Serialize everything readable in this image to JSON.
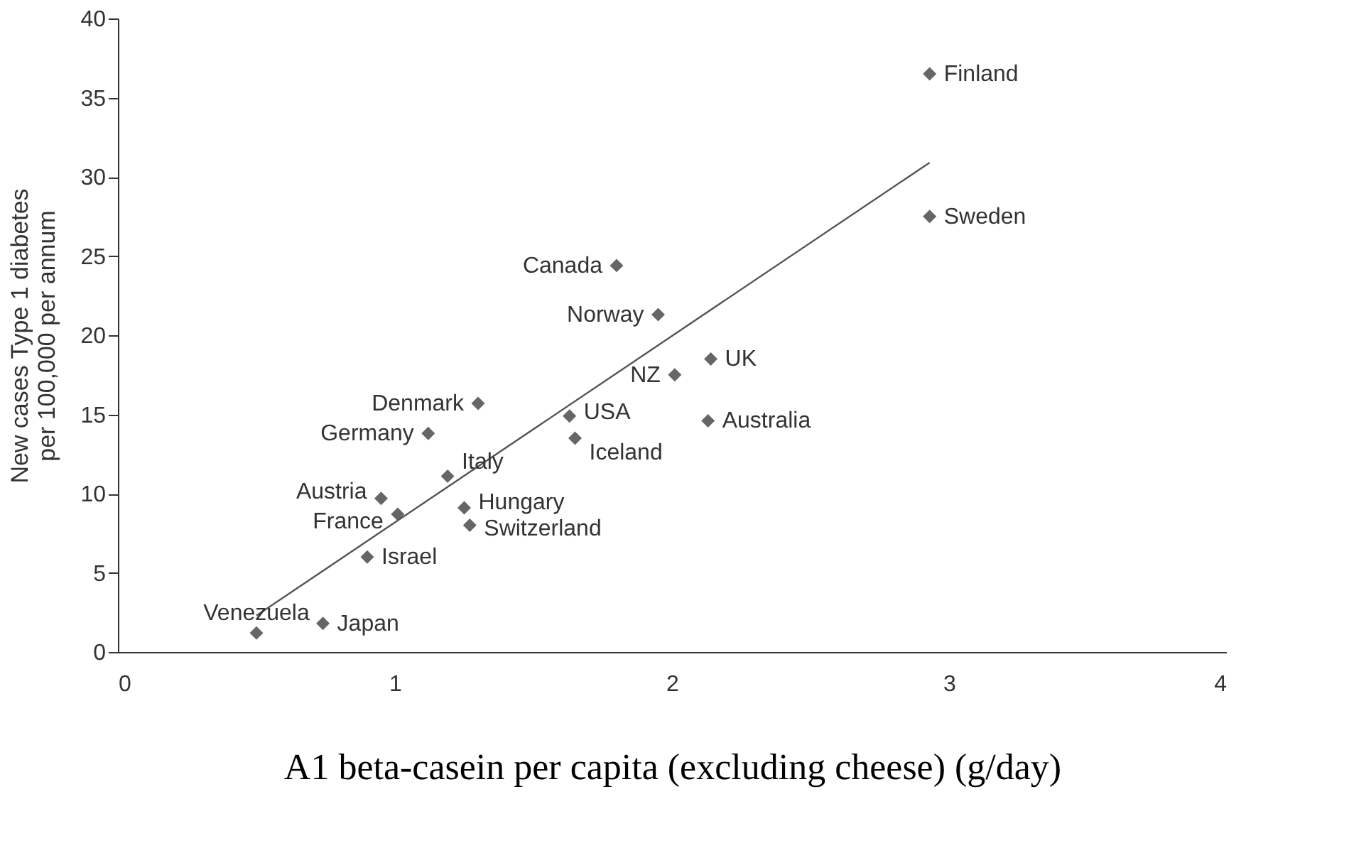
{
  "chart_data": {
    "type": "scatter",
    "xlabel": "A1 beta-casein per capita (excluding cheese) (g/day)",
    "ylabel": "New cases Type 1 diabetes\nper 100,000 per annum",
    "series": [
      {
        "color": "#666666",
        "marker": "diamond",
        "x": [
          2.93,
          2.93,
          1.8,
          1.95,
          2.14,
          2.01,
          2.13,
          1.3,
          1.63,
          1.65,
          1.12,
          1.19,
          0.95,
          1.25,
          1.01,
          1.27,
          0.9,
          0.74,
          0.5
        ],
        "values": [
          36.5,
          27.5,
          24.4,
          21.3,
          18.5,
          17.5,
          14.6,
          15.7,
          14.9,
          13.5,
          13.8,
          11.1,
          9.7,
          9.1,
          8.7,
          8.0,
          6.0,
          1.8,
          1.2
        ]
      },
      {
        "type": "line",
        "color": "#555555",
        "x": [
          0.5,
          2.93
        ],
        "values": [
          2.3,
          30.9
        ]
      }
    ],
    "annotations": [
      {
        "text": "Finland",
        "x": 2.93,
        "y": 36.5
      },
      {
        "text": "Sweden",
        "x": 2.93,
        "y": 27.5
      },
      {
        "text": "Canada",
        "x": 1.8,
        "y": 24.4
      },
      {
        "text": "Norway",
        "x": 1.95,
        "y": 21.3
      },
      {
        "text": "UK",
        "x": 2.14,
        "y": 18.5
      },
      {
        "text": "NZ",
        "x": 2.01,
        "y": 17.5
      },
      {
        "text": "Australia",
        "x": 2.13,
        "y": 14.6
      },
      {
        "text": "Denmark",
        "x": 1.3,
        "y": 15.7
      },
      {
        "text": "USA",
        "x": 1.63,
        "y": 14.9
      },
      {
        "text": "Iceland",
        "x": 1.65,
        "y": 13.5
      },
      {
        "text": "Germany",
        "x": 1.12,
        "y": 13.8
      },
      {
        "text": "Italy",
        "x": 1.19,
        "y": 11.1
      },
      {
        "text": "Austria",
        "x": 0.95,
        "y": 9.7
      },
      {
        "text": "Hungary",
        "x": 1.25,
        "y": 9.1
      },
      {
        "text": "France",
        "x": 1.01,
        "y": 8.7
      },
      {
        "text": "Switzerland",
        "x": 1.27,
        "y": 8.0
      },
      {
        "text": "Israel",
        "x": 0.9,
        "y": 6.0
      },
      {
        "text": "Japan",
        "x": 0.74,
        "y": 1.8
      },
      {
        "text": "Venezuela",
        "x": 0.5,
        "y": 1.2
      }
    ],
    "xlim": [
      0,
      4
    ],
    "xticks": [
      0,
      1,
      2,
      3,
      4
    ],
    "ylim": [
      0,
      40
    ],
    "yticks": [
      0,
      5,
      10,
      15,
      20,
      25,
      30,
      35,
      40
    ],
    "grid": false
  }
}
